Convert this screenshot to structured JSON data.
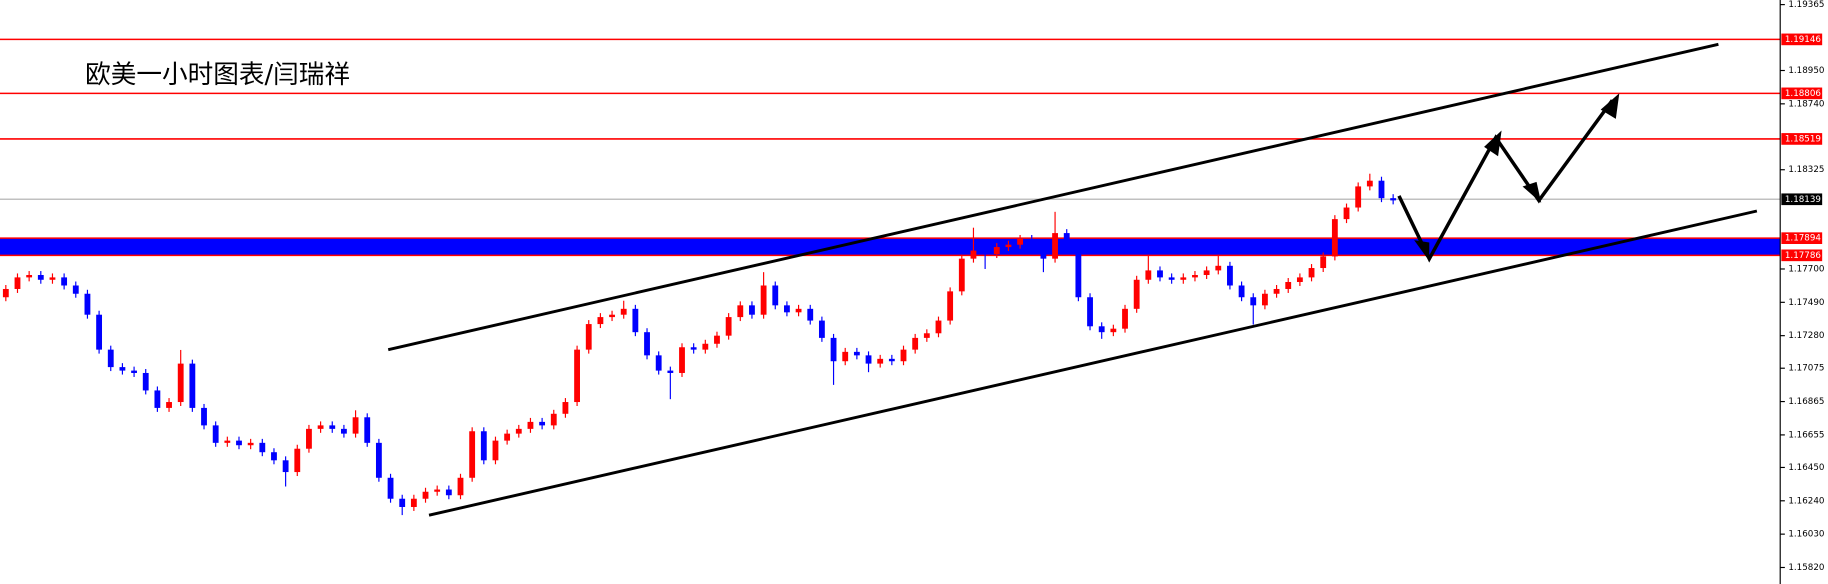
{
  "chart_data": {
    "type": "candlestick",
    "title": "欧美一小时图表/闫瑞祥",
    "ylim": [
      1.15716,
      1.19394
    ],
    "yticks": [
      1.19365,
      {
        "value": 1.1895,
        "label": "1.18950"
      },
      {
        "value": 1.1874,
        "label": "1.18740"
      },
      1.18325,
      {
        "value": 1.177,
        "label": "1.17700"
      },
      {
        "value": 1.1749,
        "label": "1.17490"
      },
      {
        "value": 1.1728,
        "label": "1.17280"
      },
      1.17075,
      1.16865,
      1.16655,
      {
        "value": 1.1645,
        "label": "1.16450"
      },
      {
        "value": 1.1624,
        "label": "1.16240"
      },
      {
        "value": 1.1603,
        "label": "1.16030"
      },
      {
        "value": 1.1582,
        "label": "1.15820"
      }
    ],
    "up_color": "#ff0000",
    "down_color": "#0000ff",
    "levels": [
      {
        "value": 1.19146,
        "color": "#ff0000"
      },
      {
        "value": 1.18806,
        "color": "#ff0000"
      },
      {
        "value": 1.18519,
        "color": "#ff0000"
      },
      {
        "value": 1.18139,
        "color": "#c0c0c0"
      },
      {
        "value": 1.17894,
        "color": "#ff0000"
      },
      {
        "value": 1.17786,
        "color": "#ff0000"
      }
    ],
    "zones": [
      {
        "from": 1.17786,
        "to": 1.17894,
        "color": "#0000ff"
      }
    ],
    "open": [
      1.17522,
      1.17574,
      1.17647,
      1.17662,
      1.17632,
      1.17647,
      1.17596,
      1.17544,
      1.17412,
      1.17192,
      1.17082,
      1.1706,
      1.17045,
      1.16935,
      1.16825,
      1.16862,
      1.17104,
      1.16825,
      1.16715,
      1.16605,
      1.16619,
      1.1659,
      1.16605,
      1.16546,
      1.16495,
      1.16421,
      1.16568,
      1.16693,
      1.16715,
      1.16693,
      1.16663,
      1.16766,
      1.16605,
      1.16385,
      1.16253,
      1.16201,
      1.16253,
      1.16297,
      1.16311,
      1.16275,
      1.16385,
      1.16678,
      1.16495,
      1.16619,
      1.16663,
      1.16693,
      1.16737,
      1.16715,
      1.16788,
      1.16862,
      1.17192,
      1.17353,
      1.17397,
      1.17412,
      1.17449,
      1.17302,
      1.17156,
      1.1706,
      1.17045,
      1.17207,
      1.17192,
      1.17229,
      1.1728,
      1.17397,
      1.17471,
      1.17412,
      1.17596,
      1.17471,
      1.17427,
      1.17449,
      1.17375,
      1.17266,
      1.17119,
      1.17178,
      1.17156,
      1.17104,
      1.17134,
      1.17119,
      1.17192,
      1.17266,
      1.17295,
      1.17375,
      1.17559,
      1.17765,
      1.17816,
      1.17794,
      1.17838,
      1.17853,
      1.17889,
      1.17816,
      1.17765,
      1.17926,
      1.17838,
      1.17522,
      1.17339,
      1.17302,
      1.17324,
      1.17449,
      1.17632,
      1.17691,
      1.17647,
      1.17632,
      1.17647,
      1.17662,
      1.17691,
      1.1772,
      1.17596,
      1.17522,
      1.17471,
      1.17544,
      1.17574,
      1.17618,
      1.17647,
      1.17706,
      1.17779,
      1.18014,
      1.18087,
      1.1822,
      1.18256,
      1.18146
    ],
    "high": [
      1.17599,
      1.17672,
      1.17687,
      1.17687,
      1.17672,
      1.17672,
      1.17621,
      1.17569,
      1.17437,
      1.17217,
      1.17107,
      1.17085,
      1.1707,
      1.1696,
      1.16887,
      1.1719,
      1.17129,
      1.1685,
      1.1674,
      1.16644,
      1.16644,
      1.1663,
      1.1663,
      1.16571,
      1.1652,
      1.16593,
      1.16718,
      1.1674,
      1.1674,
      1.16718,
      1.1681,
      1.16791,
      1.1663,
      1.1641,
      1.16278,
      1.16278,
      1.16322,
      1.16336,
      1.16336,
      1.1641,
      1.16703,
      1.16703,
      1.16644,
      1.16688,
      1.16718,
      1.16762,
      1.16762,
      1.16813,
      1.16887,
      1.17217,
      1.17378,
      1.17422,
      1.17437,
      1.175,
      1.17474,
      1.17327,
      1.17181,
      1.17085,
      1.17232,
      1.17232,
      1.17254,
      1.17305,
      1.17422,
      1.17496,
      1.17496,
      1.1768,
      1.17621,
      1.17496,
      1.17474,
      1.17474,
      1.174,
      1.17291,
      1.17203,
      1.17203,
      1.17181,
      1.17159,
      1.17159,
      1.17217,
      1.17291,
      1.1732,
      1.174,
      1.17584,
      1.1779,
      1.1796,
      1.17841,
      1.17863,
      1.17878,
      1.17914,
      1.17914,
      1.17841,
      1.1806,
      1.17951,
      1.17863,
      1.17547,
      1.17364,
      1.17349,
      1.17474,
      1.17657,
      1.1779,
      1.17716,
      1.17672,
      1.17672,
      1.17687,
      1.17716,
      1.1779,
      1.17745,
      1.17621,
      1.17547,
      1.17569,
      1.17599,
      1.17643,
      1.17672,
      1.17731,
      1.17804,
      1.18039,
      1.18112,
      1.18245,
      1.183,
      1.18281,
      1.18171
    ],
    "low": [
      1.17497,
      1.17549,
      1.17622,
      1.17607,
      1.17607,
      1.17571,
      1.17519,
      1.17387,
      1.17167,
      1.17057,
      1.17035,
      1.1702,
      1.1691,
      1.168,
      1.168,
      1.16837,
      1.168,
      1.1669,
      1.1658,
      1.1658,
      1.16565,
      1.16565,
      1.16521,
      1.1647,
      1.1633,
      1.16396,
      1.16543,
      1.16668,
      1.16668,
      1.16638,
      1.16638,
      1.1658,
      1.1636,
      1.16228,
      1.1615,
      1.16176,
      1.16228,
      1.16272,
      1.1625,
      1.1625,
      1.1636,
      1.1647,
      1.1647,
      1.16594,
      1.16638,
      1.16668,
      1.1669,
      1.1669,
      1.16763,
      1.16837,
      1.17167,
      1.17328,
      1.17372,
      1.17387,
      1.17277,
      1.17131,
      1.17035,
      1.1688,
      1.1702,
      1.17167,
      1.17167,
      1.17204,
      1.17255,
      1.17372,
      1.17387,
      1.17387,
      1.17446,
      1.17402,
      1.17402,
      1.1735,
      1.17241,
      1.1697,
      1.17094,
      1.17131,
      1.1705,
      1.17079,
      1.17094,
      1.17094,
      1.17167,
      1.17241,
      1.1727,
      1.1735,
      1.17534,
      1.1774,
      1.177,
      1.17769,
      1.17813,
      1.17828,
      1.17791,
      1.1768,
      1.1774,
      1.17813,
      1.17497,
      1.17314,
      1.1726,
      1.17277,
      1.17299,
      1.17424,
      1.17607,
      1.17622,
      1.17607,
      1.17607,
      1.17622,
      1.17637,
      1.17666,
      1.17571,
      1.17497,
      1.1735,
      1.17446,
      1.17519,
      1.17549,
      1.17593,
      1.17622,
      1.17681,
      1.17754,
      1.17989,
      1.18062,
      1.18195,
      1.18121,
      1.18107
    ],
    "close": [
      1.17574,
      1.17647,
      1.17662,
      1.17632,
      1.17647,
      1.17596,
      1.17544,
      1.17412,
      1.17192,
      1.17082,
      1.1706,
      1.17045,
      1.16935,
      1.16825,
      1.16862,
      1.17104,
      1.16825,
      1.16715,
      1.16605,
      1.16619,
      1.1659,
      1.16605,
      1.16546,
      1.16495,
      1.16421,
      1.16568,
      1.16693,
      1.16715,
      1.16693,
      1.16663,
      1.16766,
      1.16605,
      1.16385,
      1.16253,
      1.16201,
      1.16253,
      1.16297,
      1.16311,
      1.16275,
      1.16385,
      1.16678,
      1.16495,
      1.16619,
      1.16663,
      1.16693,
      1.16737,
      1.16715,
      1.16788,
      1.16862,
      1.17192,
      1.17353,
      1.17397,
      1.17412,
      1.17449,
      1.17302,
      1.17156,
      1.1706,
      1.17045,
      1.17207,
      1.17192,
      1.17229,
      1.1728,
      1.17397,
      1.17471,
      1.17412,
      1.17596,
      1.17471,
      1.17427,
      1.17449,
      1.17375,
      1.17266,
      1.17119,
      1.17178,
      1.17156,
      1.17104,
      1.17134,
      1.17119,
      1.17192,
      1.17266,
      1.17295,
      1.17375,
      1.17559,
      1.17765,
      1.17816,
      1.17794,
      1.17838,
      1.17853,
      1.17889,
      1.17816,
      1.17765,
      1.17926,
      1.17838,
      1.17522,
      1.17339,
      1.17302,
      1.17324,
      1.17449,
      1.17632,
      1.17691,
      1.17647,
      1.17632,
      1.17647,
      1.17662,
      1.17691,
      1.1772,
      1.17596,
      1.17522,
      1.17471,
      1.17544,
      1.17574,
      1.17618,
      1.17647,
      1.17706,
      1.17779,
      1.18014,
      1.18087,
      1.1822,
      1.18256,
      1.18146,
      1.18132
    ]
  }
}
